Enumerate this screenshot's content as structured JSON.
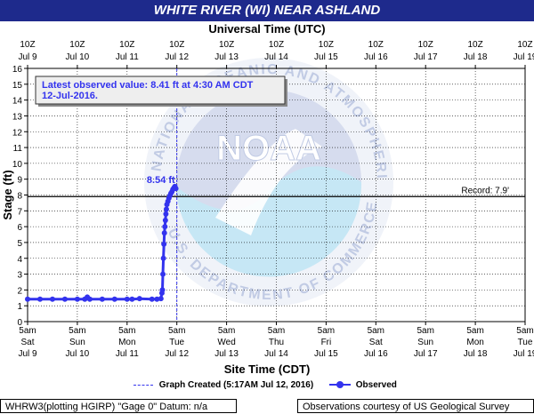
{
  "header": {
    "title": "WHITE RIVER (WI) NEAR ASHLAND"
  },
  "axes": {
    "top_title": "Universal Time (UTC)",
    "bottom_title": "Site Time (CDT)",
    "ylabel": "Stage (ft)"
  },
  "top_ticks": [
    {
      "time": "10Z",
      "date": "Jul 9"
    },
    {
      "time": "10Z",
      "date": "Jul 10"
    },
    {
      "time": "10Z",
      "date": "Jul 11"
    },
    {
      "time": "10Z",
      "date": "Jul 12"
    },
    {
      "time": "10Z",
      "date": "Jul 13"
    },
    {
      "time": "10Z",
      "date": "Jul 14"
    },
    {
      "time": "10Z",
      "date": "Jul 15"
    },
    {
      "time": "10Z",
      "date": "Jul 16"
    },
    {
      "time": "10Z",
      "date": "Jul 17"
    },
    {
      "time": "10Z",
      "date": "Jul 18"
    },
    {
      "time": "10Z",
      "date": "Jul 19"
    }
  ],
  "bottom_ticks": [
    {
      "time": "5am",
      "day": "Sat",
      "date": "Jul 9"
    },
    {
      "time": "5am",
      "day": "Sun",
      "date": "Jul 10"
    },
    {
      "time": "5am",
      "day": "Mon",
      "date": "Jul 11"
    },
    {
      "time": "5am",
      "day": "Tue",
      "date": "Jul 12"
    },
    {
      "time": "5am",
      "day": "Wed",
      "date": "Jul 13"
    },
    {
      "time": "5am",
      "day": "Thu",
      "date": "Jul 14"
    },
    {
      "time": "5am",
      "day": "Fri",
      "date": "Jul 15"
    },
    {
      "time": "5am",
      "day": "Sat",
      "date": "Jul 16"
    },
    {
      "time": "5am",
      "day": "Sun",
      "date": "Jul 17"
    },
    {
      "time": "5am",
      "day": "Mon",
      "date": "Jul 18"
    },
    {
      "time": "5am",
      "day": "Tue",
      "date": "Jul 19"
    }
  ],
  "latest": {
    "line1": "Latest observed value: 8.41  ft at 4:30 AM CDT",
    "line2": "12-Jul-2016."
  },
  "peak_label": "8.54 ft",
  "record_label": "Record: 7.9'",
  "legend": {
    "graph_created": "Graph Created (5:17AM Jul 12, 2016)",
    "observed": "Observed"
  },
  "footer": {
    "left": "WHRW3(plotting HGIRP) \"Gage 0\" Datum: n/a",
    "right": "Observations courtesy of US Geological Survey"
  },
  "watermark": {
    "text": "NOAA",
    "ring_text": "NATIONAL OCEANIC AND ATMOSPHERIC ADMINISTRATION",
    "bottom_text": "U.S. DEPARTMENT OF COMMERCE"
  },
  "colors": {
    "title_bg": "#1e2a8c",
    "series": "#3333ee",
    "grid": "#000000",
    "record": "#000000"
  },
  "chart_data": {
    "type": "line",
    "ylim": [
      0,
      16
    ],
    "yticks": [
      0,
      1,
      2,
      3,
      4,
      5,
      6,
      7,
      8,
      9,
      10,
      11,
      12,
      13,
      14,
      15,
      16
    ],
    "x_unit": "days since Jul 9 5am CDT",
    "xlim": [
      0,
      10
    ],
    "record": 7.9,
    "graph_created_day": 3.0,
    "peak": 8.54,
    "series": [
      {
        "name": "Observed",
        "x": [
          0.0,
          0.25,
          0.5,
          0.75,
          1.0,
          1.15,
          1.2,
          1.25,
          1.5,
          1.75,
          2.0,
          2.1,
          2.25,
          2.5,
          2.6,
          2.68,
          2.7,
          2.71,
          2.72,
          2.73,
          2.74,
          2.75,
          2.76,
          2.77,
          2.78,
          2.79,
          2.8,
          2.82,
          2.84,
          2.86,
          2.88,
          2.9,
          2.92,
          2.94,
          2.96,
          2.98
        ],
        "y": [
          1.42,
          1.42,
          1.42,
          1.42,
          1.42,
          1.42,
          1.55,
          1.42,
          1.42,
          1.42,
          1.42,
          1.42,
          1.45,
          1.42,
          1.42,
          1.45,
          1.8,
          2.0,
          3.0,
          4.0,
          4.9,
          5.6,
          6.0,
          6.4,
          6.8,
          7.1,
          7.4,
          7.6,
          7.8,
          7.95,
          8.1,
          8.2,
          8.35,
          8.45,
          8.54,
          8.41
        ]
      }
    ]
  }
}
